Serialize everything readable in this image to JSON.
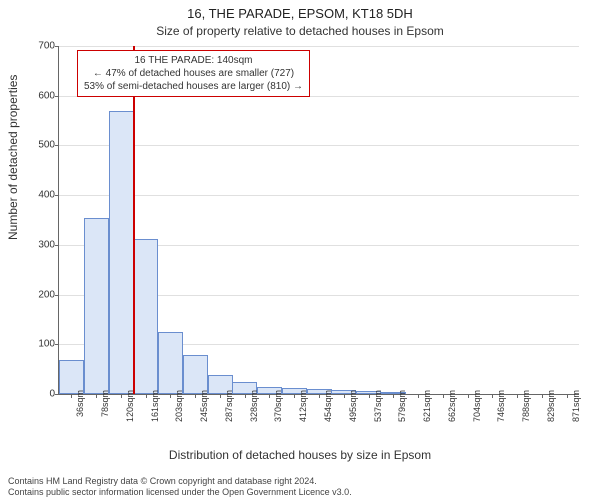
{
  "title_main": "16, THE PARADE, EPSOM, KT18 5DH",
  "title_sub": "Size of property relative to detached houses in Epsom",
  "ylabel": "Number of detached properties",
  "xlabel": "Distribution of detached houses by size in Epsom",
  "footer_line1": "Contains HM Land Registry data © Crown copyright and database right 2024.",
  "footer_line2": "Contains public sector information licensed under the Open Government Licence v3.0.",
  "chart": {
    "type": "histogram",
    "background_color": "#ffffff",
    "grid_color": "#e0e0e0",
    "axis_color": "#666666",
    "bar_fill": "#dbe6f7",
    "bar_stroke": "#6a8ecf",
    "marker_line_color": "#cc0000",
    "anno_border_color": "#cc0000",
    "ylim": [
      0,
      700
    ],
    "ytick_step": 100,
    "yticks": [
      0,
      100,
      200,
      300,
      400,
      500,
      600,
      700
    ],
    "x_tick_labels": [
      "36sqm",
      "78sqm",
      "120sqm",
      "161sqm",
      "203sqm",
      "245sqm",
      "287sqm",
      "328sqm",
      "370sqm",
      "412sqm",
      "454sqm",
      "495sqm",
      "537sqm",
      "579sqm",
      "621sqm",
      "662sqm",
      "704sqm",
      "746sqm",
      "788sqm",
      "829sqm",
      "871sqm"
    ],
    "bar_centers_sqm": [
      36,
      78,
      120,
      161,
      203,
      245,
      287,
      328,
      370,
      412,
      454,
      495,
      537,
      579,
      621,
      662,
      704,
      746,
      788,
      829,
      871
    ],
    "bar_values": [
      68,
      354,
      570,
      312,
      125,
      78,
      38,
      24,
      15,
      12,
      10,
      8,
      6,
      4,
      0,
      0,
      0,
      0,
      0,
      0,
      0
    ],
    "x_domain_sqm": [
      15,
      892
    ],
    "marker_value_sqm": 140,
    "anno_lines": [
      "16 THE PARADE: 140sqm",
      "← 47% of detached houses are smaller (727)",
      "53% of semi-detached houses are larger (810) →"
    ],
    "title_fontsize": 13,
    "subtitle_fontsize": 12,
    "label_fontsize": 12,
    "tick_fontsize": 10,
    "anno_fontsize": 10,
    "footer_fontsize": 9
  }
}
